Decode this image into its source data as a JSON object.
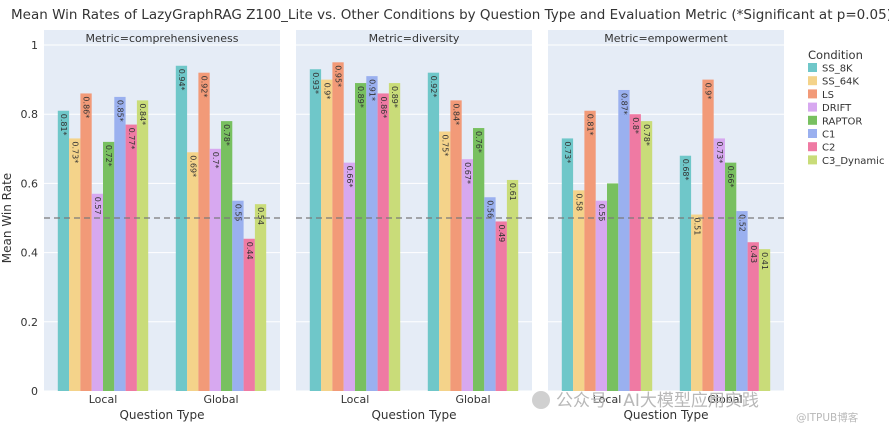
{
  "chart_data": {
    "type": "bar",
    "title": "Mean Win Rates of LazyGraphRAG Z100_Lite vs. Other Conditions by Question Type and Evaluation Metric (*Significant at p=0.05)",
    "xlabel": "Question Type",
    "ylabel": "Mean Win Rate",
    "ylim": [
      0,
      1
    ],
    "yticks": [
      "0",
      "0.2",
      "0.4",
      "0.6",
      "0.8",
      "1"
    ],
    "reference_line": 0.5,
    "grid": true,
    "legend": {
      "title": "Condition",
      "placement": "right",
      "entries": [
        "SS_8K",
        "SS_64K",
        "LS",
        "DRIFT",
        "RAPTOR",
        "C1",
        "C2",
        "C3_Dynamic"
      ]
    },
    "categories": [
      "Local",
      "Global"
    ],
    "colors": [
      "#6fc7c9",
      "#f4d38a",
      "#f29a78",
      "#d7a8f0",
      "#78c060",
      "#9ab0ef",
      "#ef7aa3",
      "#c9dc79"
    ],
    "panels": [
      {
        "title": "Metric=comprehensiveness",
        "values": [
          [
            0.81,
            0.73,
            0.86,
            0.57,
            0.72,
            0.85,
            0.77,
            0.84
          ],
          [
            0.94,
            0.69,
            0.92,
            0.7,
            0.78,
            0.55,
            0.44,
            0.54
          ]
        ],
        "labels": [
          [
            "0.81*",
            "0.73*",
            "0.86*",
            "0.57",
            "0.72*",
            "0.85*",
            "0.77*",
            "0.84*"
          ],
          [
            "0.94*",
            "0.69*",
            "0.92*",
            "0.7*",
            "0.78*",
            "0.55",
            "0.44",
            "0.54"
          ]
        ]
      },
      {
        "title": "Metric=diversity",
        "values": [
          [
            0.93,
            0.9,
            0.95,
            0.66,
            0.89,
            0.91,
            0.86,
            0.89
          ],
          [
            0.92,
            0.75,
            0.84,
            0.67,
            0.76,
            0.56,
            0.49,
            0.61
          ]
        ],
        "labels": [
          [
            "0.93*",
            "0.9*",
            "0.95*",
            "0.66*",
            "0.89*",
            "0.91*",
            "0.86*",
            "0.89*"
          ],
          [
            "0.92*",
            "0.75*",
            "0.84*",
            "0.67*",
            "0.76*",
            "0.56",
            "0.49",
            "0.61"
          ]
        ]
      },
      {
        "title": "Metric=empowerment",
        "values": [
          [
            0.73,
            0.58,
            0.81,
            0.55,
            0.6,
            0.87,
            0.8,
            0.78
          ],
          [
            0.68,
            0.51,
            0.9,
            0.73,
            0.66,
            0.52,
            0.43,
            0.41
          ]
        ],
        "labels": [
          [
            "0.73*",
            "0.58",
            "0.81*",
            "0.55",
            "",
            "0.87*",
            "0.8*",
            "0.78*"
          ],
          [
            "0.68*",
            "0.51",
            "0.9*",
            "0.73*",
            "0.66*",
            "0.52",
            "0.43",
            "0.41"
          ]
        ]
      }
    ]
  },
  "watermark": {
    "text1": "公众号 · AI大模型应用实践",
    "text2": "@ITPUB博客"
  }
}
